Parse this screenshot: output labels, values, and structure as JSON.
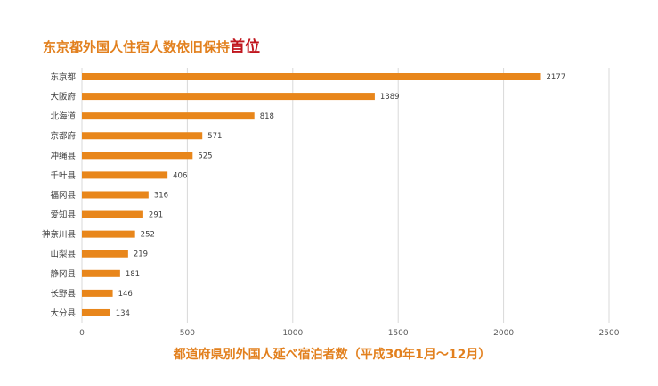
{
  "chart_data": {
    "type": "bar",
    "orientation": "horizontal",
    "title": {
      "text": "东京都外国人住宿人数依旧保持",
      "emphasis": "首位"
    },
    "categories": [
      "东京都",
      "大阪府",
      "北海道",
      "京都府",
      "冲绳县",
      "千叶县",
      "福冈县",
      "爱知县",
      "神奈川县",
      "山梨县",
      "静冈县",
      "长野县",
      "大分县"
    ],
    "values": [
      2177,
      1389,
      818,
      571,
      525,
      406,
      316,
      291,
      252,
      219,
      181,
      146,
      134
    ],
    "xlabel": "都道府県別外国人延べ宿泊者数（平成30年1月～12月）",
    "xlim": [
      0,
      2500
    ],
    "xticks": [
      0,
      500,
      1000,
      1500,
      2000,
      2500
    ],
    "grid": true,
    "data_labels": true,
    "colors": {
      "bar": "#E8861B",
      "title": "#E2801E",
      "emphasis": "#C0161E",
      "xlabel": "#E2801E",
      "grid": "#D9D9D9",
      "text": "#404040",
      "tick": "#595959"
    }
  }
}
